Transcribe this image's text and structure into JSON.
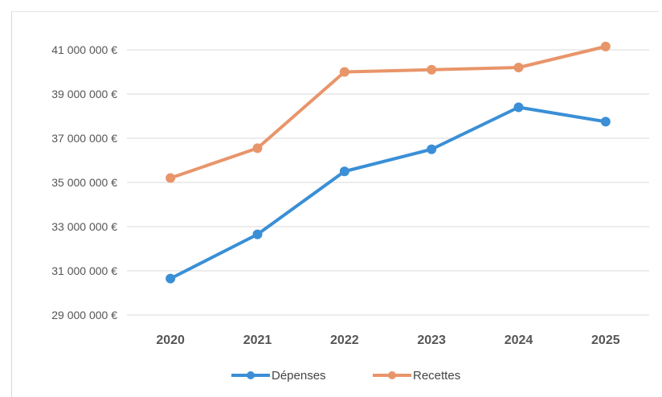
{
  "chart_data": {
    "type": "line",
    "title": "",
    "xlabel": "",
    "ylabel": "",
    "categories": [
      "2020",
      "2021",
      "2022",
      "2023",
      "2024",
      "2025"
    ],
    "ylim": [
      29000000,
      41000000
    ],
    "y_ticks": [
      "29 000 000 €",
      "31 000 000 €",
      "33 000 000 €",
      "35 000 000 €",
      "37 000 000 €",
      "39 000 000 €",
      "41 000 000 €"
    ],
    "y_tick_values": [
      29000000,
      31000000,
      33000000,
      35000000,
      37000000,
      39000000,
      41000000
    ],
    "grid": "horizontal",
    "legend_position": "bottom",
    "series": [
      {
        "name": "Dépenses",
        "color": "#3a8fd6",
        "values": [
          30650000,
          32650000,
          35500000,
          36500000,
          38400000,
          37750000
        ]
      },
      {
        "name": "Recettes",
        "color": "#e8956a",
        "values": [
          35200000,
          36550000,
          40000000,
          40100000,
          40200000,
          41150000
        ]
      }
    ]
  }
}
